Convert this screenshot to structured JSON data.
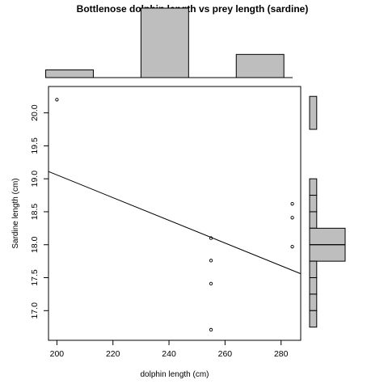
{
  "chart_data": {
    "type": "scatter",
    "title": "Bottlenose dolphin length vs prey length (sardine)",
    "xlabel": "dolphin length (cm)",
    "ylabel": "Sardine length (cm)",
    "xlim": [
      197,
      287
    ],
    "ylim": [
      16.55,
      20.4
    ],
    "xticks": [
      "200",
      "220",
      "240",
      "260",
      "280"
    ],
    "yticks": [
      "17.0",
      "17.5",
      "18.0",
      "18.5",
      "19.0",
      "19.5",
      "20.0"
    ],
    "grid": false,
    "points": [
      {
        "x": 200,
        "y": 20.2
      },
      {
        "x": 255,
        "y": 18.1
      },
      {
        "x": 255,
        "y": 17.76
      },
      {
        "x": 255,
        "y": 17.41
      },
      {
        "x": 255,
        "y": 16.71
      },
      {
        "x": 284,
        "y": 18.62
      },
      {
        "x": 284,
        "y": 18.41
      },
      {
        "x": 284,
        "y": 17.97
      }
    ],
    "regression_line": {
      "x": [
        197,
        287
      ],
      "y": [
        19.11,
        17.56
      ]
    },
    "top_histogram": {
      "bins": [
        [
          196,
          213
        ],
        [
          230,
          247
        ],
        [
          264,
          281
        ]
      ],
      "counts": [
        1,
        9,
        3
      ]
    },
    "right_histogram": {
      "bins": [
        [
          19.75,
          20.25
        ],
        [
          18.75,
          19.0
        ],
        [
          18.5,
          18.75
        ],
        [
          18.25,
          18.5
        ],
        [
          18.0,
          18.25
        ],
        [
          17.75,
          18.0
        ],
        [
          17.5,
          17.75
        ],
        [
          17.25,
          17.5
        ],
        [
          17.0,
          17.25
        ],
        [
          16.75,
          17.0
        ]
      ],
      "counts": [
        1,
        1,
        1,
        1,
        5,
        5,
        1,
        1,
        1,
        1
      ]
    },
    "median_line": 18.0
  },
  "colors": {
    "background": "#ffffff",
    "axes": "#000000",
    "histogram_fill": "#bebebe",
    "points": "#000000"
  }
}
